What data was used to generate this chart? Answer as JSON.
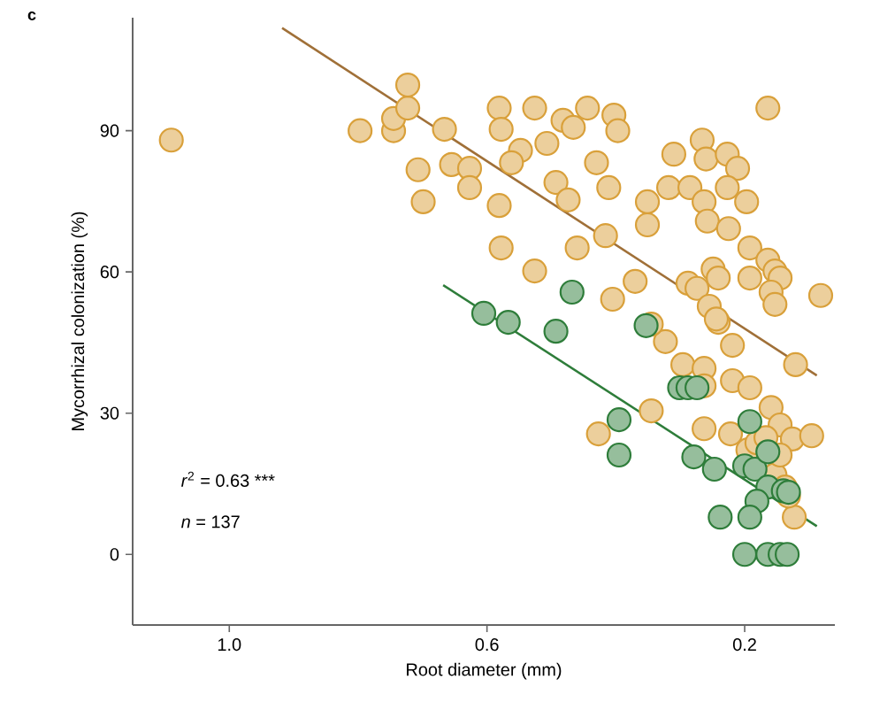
{
  "chart_data": {
    "type": "scatter",
    "title": "c",
    "xlabel": "Root diameter (mm)",
    "ylabel": "Mycorrhizal colonization (%)",
    "xlim": [
      1.15,
      0.06
    ],
    "ylim": [
      -15,
      114
    ],
    "xticks": [
      {
        "value": 1.0,
        "label": "1.0"
      },
      {
        "value": 0.6,
        "label": "0.6"
      },
      {
        "value": 0.2,
        "label": "0.2"
      }
    ],
    "yticks": [
      0,
      30,
      60,
      90
    ],
    "grid": false,
    "annotations": [
      "*r*$^{2}$ = 0.63 ***",
      "*n* = 137"
    ],
    "series": [
      {
        "color": "#d9a03a",
        "marker": "circle",
        "x": [
          1.09,
          0.797,
          0.745,
          0.745,
          0.723,
          0.723,
          0.707,
          0.699,
          0.666,
          0.655,
          0.627,
          0.627,
          0.581,
          0.578,
          0.526,
          0.482,
          0.466,
          0.444,
          0.403,
          0.397,
          0.507,
          0.548,
          0.562,
          0.43,
          0.493,
          0.474,
          0.411,
          0.581,
          0.578,
          0.46,
          0.526,
          0.416,
          0.405,
          0.37,
          0.31,
          0.266,
          0.26,
          0.227,
          0.211,
          0.164,
          0.351,
          0.351,
          0.318,
          0.285,
          0.263,
          0.258,
          0.227,
          0.197,
          0.225,
          0.192,
          0.164,
          0.153,
          0.145,
          0.192,
          0.159,
          0.153,
          0.082,
          0.288,
          0.274,
          0.249,
          0.241,
          0.255,
          0.241,
          0.219,
          0.323,
          0.244,
          0.345,
          0.296,
          0.263,
          0.263,
          0.219,
          0.192,
          0.159,
          0.145,
          0.121,
          0.345,
          0.427,
          0.263,
          0.222,
          0.195,
          0.181,
          0.126,
          0.096,
          0.153,
          0.137,
          0.123,
          0.132,
          0.167,
          0.145
        ],
        "values": [
          88,
          90,
          90,
          92.6,
          94.8,
          99.7,
          81.7,
          74.9,
          90.3,
          82.8,
          82,
          77.9,
          94.8,
          90.3,
          94.8,
          92.2,
          90.7,
          94.8,
          93.3,
          90,
          87.3,
          85.8,
          83.2,
          83.2,
          79,
          75.3,
          77.9,
          74.1,
          65.1,
          65.1,
          60.2,
          67.7,
          54.2,
          58,
          85,
          88,
          84,
          85,
          82,
          94.8,
          74.9,
          70,
          77.9,
          77.9,
          74.9,
          70.8,
          77.9,
          74.9,
          69.2,
          65.1,
          62.5,
          60.2,
          58.7,
          58.7,
          55.7,
          53.1,
          55,
          57.6,
          56.5,
          60.6,
          58.7,
          52.7,
          49.3,
          44.4,
          45.2,
          50,
          48.9,
          40.3,
          39.5,
          35.8,
          36.9,
          35.4,
          31.2,
          27.5,
          40.3,
          30.5,
          25.6,
          26.7,
          25.6,
          22.2,
          23.7,
          24.5,
          25.2,
          16.9,
          14.3,
          7.9,
          12.4,
          24.8,
          21.1
        ]
      },
      {
        "color": "#2e7d3a",
        "marker": "circle",
        "x": [
          0.468,
          0.605,
          0.567,
          0.493,
          0.353,
          0.395,
          0.395,
          0.301,
          0.288,
          0.274,
          0.279,
          0.247,
          0.192,
          0.2,
          0.184,
          0.164,
          0.164,
          0.14,
          0.181,
          0.238,
          0.192,
          0.2,
          0.164,
          0.145,
          0.134,
          0.132
        ],
        "values": [
          55.7,
          51.2,
          49.3,
          47.4,
          48.6,
          28.6,
          21.1,
          35.4,
          35.4,
          35.4,
          20.7,
          18.1,
          28.2,
          18.8,
          18.1,
          21.8,
          14.3,
          13.5,
          11.3,
          7.9,
          7.9,
          0,
          0,
          0,
          0,
          13.2
        ]
      },
      {
        "type": "line",
        "marker": "none",
        "color": "#a07038",
        "x": [
          0.918,
          0.088
        ],
        "values": [
          111.8,
          38
        ]
      },
      {
        "type": "line",
        "marker": "none",
        "color": "#2e7d3a",
        "x": [
          0.668,
          0.088
        ],
        "values": [
          57.2,
          6
        ]
      }
    ]
  }
}
